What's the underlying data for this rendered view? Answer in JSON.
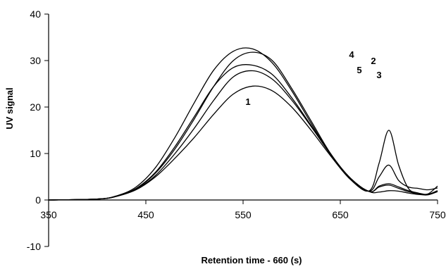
{
  "chart_data": {
    "type": "line",
    "title": "",
    "xlabel": "Retention time - 660 (s)",
    "ylabel": "UV signal",
    "xlim": [
      350,
      750
    ],
    "ylim": [
      -10,
      40
    ],
    "xticks": [
      350,
      450,
      550,
      650,
      750
    ],
    "yticks": [
      -10,
      0,
      10,
      20,
      30,
      40
    ],
    "grid": false,
    "legend": "none",
    "series": [
      {
        "name": "1",
        "x": [
          350,
          400,
          420,
          440,
          460,
          480,
          500,
          520,
          540,
          560,
          580,
          600,
          620,
          640,
          660,
          680,
          690,
          700,
          710,
          720,
          730,
          740,
          750
        ],
        "y": [
          0,
          0.2,
          0.8,
          2.2,
          5.0,
          9.0,
          13.5,
          18.5,
          22.8,
          24.5,
          23.5,
          20.0,
          15.0,
          9.5,
          4.5,
          1.8,
          1.7,
          2.0,
          1.9,
          1.5,
          1.2,
          1.1,
          1.8
        ]
      },
      {
        "name": "2",
        "x": [
          350,
          400,
          420,
          440,
          460,
          480,
          500,
          520,
          540,
          560,
          580,
          600,
          620,
          640,
          660,
          680,
          690,
          700,
          710,
          720,
          730,
          740,
          750
        ],
        "y": [
          0,
          0.2,
          0.8,
          2.4,
          5.8,
          11.0,
          17.5,
          24.5,
          30.0,
          31.8,
          30.0,
          24.0,
          17.0,
          10.0,
          4.8,
          1.8,
          3.0,
          3.5,
          2.8,
          2.0,
          1.5,
          1.2,
          2.0
        ]
      },
      {
        "name": "3",
        "x": [
          350,
          400,
          420,
          440,
          460,
          480,
          500,
          520,
          540,
          560,
          580,
          600,
          620,
          640,
          660,
          680,
          690,
          700,
          710,
          720,
          730,
          740,
          750
        ],
        "y": [
          0,
          0.2,
          0.8,
          2.3,
          5.3,
          10.0,
          15.5,
          21.5,
          26.5,
          27.8,
          26.0,
          21.5,
          15.8,
          9.8,
          4.6,
          1.8,
          2.8,
          3.2,
          2.5,
          1.8,
          1.3,
          1.2,
          2.0
        ]
      },
      {
        "name": "4",
        "x": [
          350,
          400,
          420,
          440,
          460,
          480,
          500,
          520,
          540,
          560,
          580,
          600,
          620,
          640,
          660,
          680,
          690,
          700,
          710,
          720,
          730,
          740,
          750
        ],
        "y": [
          0,
          0.2,
          0.9,
          2.8,
          7.0,
          13.5,
          21.0,
          28.0,
          32.0,
          32.5,
          29.5,
          23.5,
          16.5,
          9.8,
          4.5,
          2.0,
          8.0,
          15.0,
          7.5,
          2.5,
          1.5,
          1.3,
          3.0
        ]
      },
      {
        "name": "5",
        "x": [
          350,
          400,
          420,
          440,
          460,
          480,
          500,
          520,
          540,
          560,
          580,
          600,
          620,
          640,
          660,
          680,
          690,
          700,
          710,
          720,
          730,
          740,
          750
        ],
        "y": [
          0,
          0.2,
          0.8,
          2.5,
          6.0,
          11.5,
          18.0,
          24.5,
          28.5,
          29.0,
          27.0,
          22.0,
          16.0,
          9.8,
          4.6,
          1.9,
          5.0,
          7.5,
          4.2,
          2.8,
          2.5,
          2.2,
          2.6
        ]
      }
    ]
  }
}
